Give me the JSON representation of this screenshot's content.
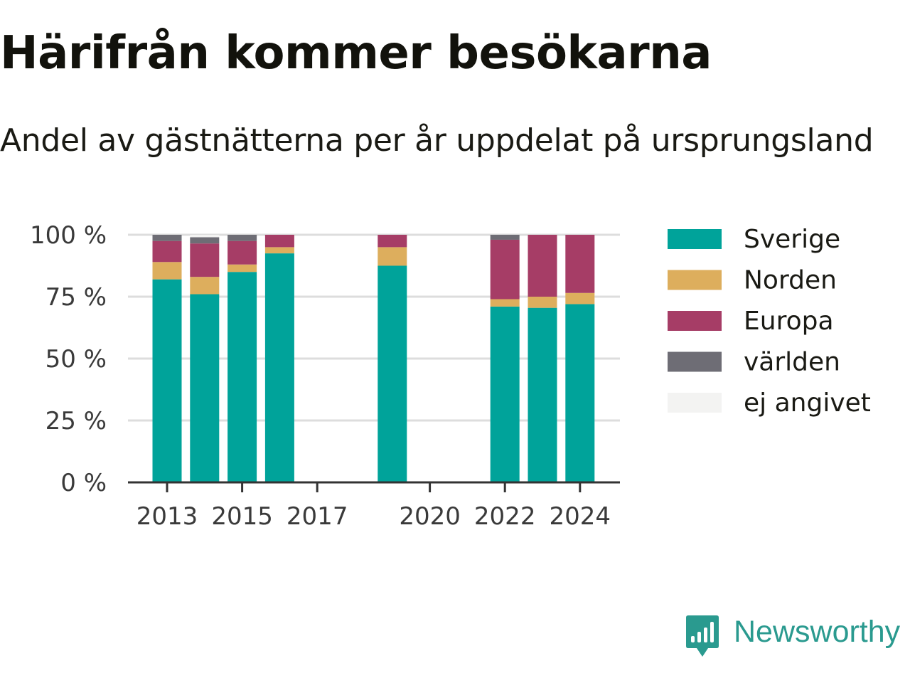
{
  "header": {
    "title": "Härifrån kommer besökarna",
    "subtitle": "Andel av gästnätterna per år uppdelat på ursprungsland"
  },
  "brand": {
    "name": "Newsworthy",
    "icon": "newsworthy-logo-icon",
    "color": "#2a9a8f"
  },
  "chart_data": {
    "type": "bar",
    "stacked": true,
    "categories": [
      "2013",
      "2014",
      "2015",
      "2016",
      "2017",
      "2018",
      "2019",
      "2020",
      "2021",
      "2022",
      "2023",
      "2024"
    ],
    "x_tick_labels": [
      "2013",
      "2015",
      "2017",
      "2020",
      "2022",
      "2024"
    ],
    "y_tick_labels": [
      "0 %",
      "25 %",
      "50 %",
      "75 %",
      "100 %"
    ],
    "ylim": [
      0,
      100
    ],
    "grid": true,
    "legend_position": "right",
    "series": [
      {
        "name": "Sverige",
        "color": "#00a39a",
        "values": [
          82,
          76,
          85,
          92.5,
          null,
          null,
          87.5,
          null,
          null,
          71,
          70.5,
          72
        ]
      },
      {
        "name": "Norden",
        "color": "#ddae5d",
        "values": [
          7,
          7,
          3,
          2.5,
          null,
          null,
          7.5,
          null,
          null,
          3,
          4.5,
          4.5
        ]
      },
      {
        "name": "Europa",
        "color": "#a63d66",
        "values": [
          8.5,
          13.5,
          9.5,
          5,
          null,
          null,
          5,
          null,
          null,
          24,
          25,
          23.5
        ]
      },
      {
        "name": "världen",
        "color": "#6e6d75",
        "values": [
          2.5,
          2.5,
          2.5,
          0,
          null,
          null,
          0,
          null,
          null,
          2,
          0,
          0
        ]
      },
      {
        "name": "ej angivet",
        "color": "#f3f3f2",
        "values": [
          0,
          1,
          0,
          0,
          null,
          null,
          0,
          null,
          null,
          0,
          0,
          0
        ]
      }
    ]
  }
}
